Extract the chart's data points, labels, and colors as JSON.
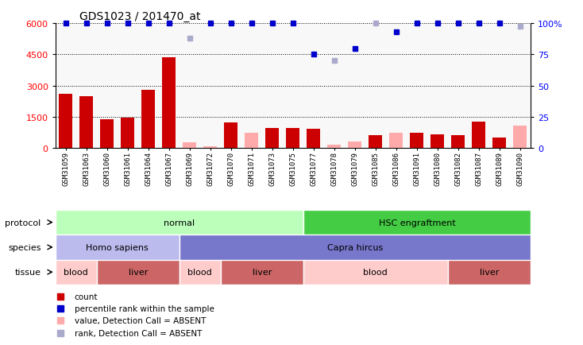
{
  "title": "GDS1023 / 201470_at",
  "samples": [
    "GSM31059",
    "GSM31063",
    "GSM31060",
    "GSM31061",
    "GSM31064",
    "GSM31067",
    "GSM31069",
    "GSM31072",
    "GSM31070",
    "GSM31071",
    "GSM31073",
    "GSM31075",
    "GSM31077",
    "GSM31078",
    "GSM31079",
    "GSM31085",
    "GSM31086",
    "GSM31091",
    "GSM31080",
    "GSM31082",
    "GSM31087",
    "GSM31089",
    "GSM31090"
  ],
  "count_values": [
    2600,
    2500,
    1350,
    1450,
    2800,
    4350,
    250,
    50,
    1200,
    700,
    950,
    950,
    900,
    120,
    300,
    600,
    700,
    700,
    650,
    600,
    1250,
    500,
    1050
  ],
  "count_absent": [
    false,
    false,
    false,
    false,
    false,
    false,
    true,
    true,
    false,
    true,
    false,
    false,
    false,
    true,
    true,
    false,
    true,
    false,
    false,
    false,
    false,
    false,
    true
  ],
  "rank_values": [
    100,
    100,
    100,
    100,
    100,
    100,
    88,
    100,
    100,
    100,
    100,
    100,
    75,
    70,
    80,
    100,
    93,
    100,
    100,
    100,
    100,
    100,
    98
  ],
  "rank_absent": [
    false,
    false,
    false,
    false,
    false,
    false,
    true,
    false,
    false,
    false,
    false,
    false,
    false,
    true,
    false,
    true,
    false,
    false,
    false,
    false,
    false,
    false,
    true
  ],
  "ylim_left": [
    0,
    6000
  ],
  "ylim_right": [
    0,
    100
  ],
  "yticks_left": [
    0,
    1500,
    3000,
    4500,
    6000
  ],
  "yticks_right": [
    0,
    25,
    50,
    75,
    100
  ],
  "bar_color_present": "#cc0000",
  "bar_color_absent": "#ffaaaa",
  "dot_color_present": "#0000cc",
  "dot_color_absent": "#aaaacc",
  "protocol_groups": [
    {
      "label": "normal",
      "start": 0,
      "end": 12,
      "color": "#bbffbb"
    },
    {
      "label": "HSC engraftment",
      "start": 12,
      "end": 23,
      "color": "#44cc44"
    }
  ],
  "species_groups": [
    {
      "label": "Homo sapiens",
      "start": 0,
      "end": 6,
      "color": "#bbbbee"
    },
    {
      "label": "Capra hircus",
      "start": 6,
      "end": 23,
      "color": "#7777cc"
    }
  ],
  "tissue_groups": [
    {
      "label": "blood",
      "start": 0,
      "end": 2,
      "color": "#ffcccc"
    },
    {
      "label": "liver",
      "start": 2,
      "end": 6,
      "color": "#cc6666"
    },
    {
      "label": "blood",
      "start": 6,
      "end": 8,
      "color": "#ffcccc"
    },
    {
      "label": "liver",
      "start": 8,
      "end": 12,
      "color": "#cc6666"
    },
    {
      "label": "blood",
      "start": 12,
      "end": 19,
      "color": "#ffcccc"
    },
    {
      "label": "liver",
      "start": 19,
      "end": 23,
      "color": "#cc6666"
    }
  ],
  "legend_items": [
    {
      "label": "count",
      "color": "#cc0000"
    },
    {
      "label": "percentile rank within the sample",
      "color": "#0000cc"
    },
    {
      "label": "value, Detection Call = ABSENT",
      "color": "#ffaaaa"
    },
    {
      "label": "rank, Detection Call = ABSENT",
      "color": "#aaaacc"
    }
  ],
  "bg_color": "#f0f0f0"
}
